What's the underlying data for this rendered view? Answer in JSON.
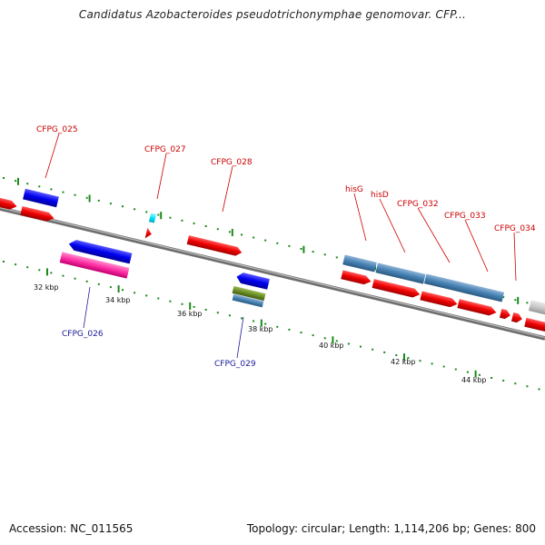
{
  "title": "Candidatus Azobacteroides pseudotrichonymphae genomovar. CFP...",
  "footer": {
    "accession": "Accession: NC_011565",
    "topology": "Topology: circular; Length: 1,114,206 bp; Genes: 800"
  },
  "colors": {
    "backbone": "#8a8a8a",
    "forward_gene": "#ee0000",
    "reverse_gene": "#0000ee",
    "rna_gene": "#ff33aa",
    "steelblue": "#4682b4",
    "olive": "#6b8e23",
    "cyan": "#00e5ff",
    "gray_gene": "#c8c8c8",
    "tick": "#1a8a1a"
  },
  "scale_labels": [
    "32 kbp",
    "34 kbp",
    "36 kbp",
    "38 kbp",
    "40 kbp",
    "42 kbp",
    "44 kbp"
  ],
  "gene_labels": {
    "forward": [
      "CFPG_025",
      "CFPG_027",
      "CFPG_028",
      "hisG",
      "hisD",
      "CFPG_032",
      "CFPG_033",
      "CFPG_034"
    ],
    "reverse": [
      "CFPG_026",
      "CFPG_029"
    ]
  }
}
